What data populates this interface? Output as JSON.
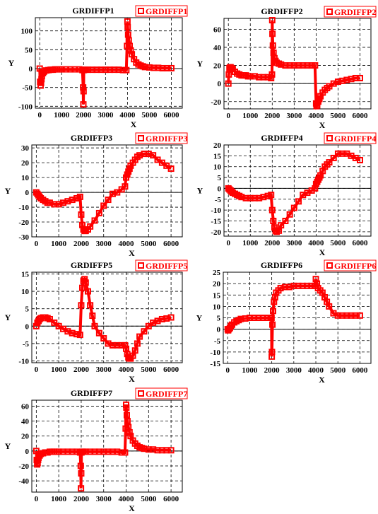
{
  "theme": {
    "series_color": "#ff0000",
    "axis_color": "#000000",
    "grid_color": "#000000",
    "background": "#ffffff"
  },
  "chart_data": [
    {
      "type": "scatter",
      "title": "GRDIFFP1",
      "xlabel": "X",
      "ylabel": "Y",
      "xlim": [
        -200,
        6500
      ],
      "ylim": [
        -105,
        135
      ],
      "xticks": [
        0,
        1000,
        2000,
        3000,
        4000,
        5000,
        6000
      ],
      "yticks": [
        -100,
        -50,
        0,
        50,
        100
      ],
      "grid": true,
      "legend_position": "top-right",
      "series": [
        {
          "name": "GRDIFFP1",
          "x": [
            0,
            20,
            40,
            60,
            80,
            100,
            150,
            200,
            300,
            400,
            500,
            600,
            700,
            800,
            900,
            1000,
            1200,
            1400,
            1600,
            1800,
            1950,
            1980,
            1990,
            2000,
            2010,
            2050,
            2100,
            2200,
            2400,
            2600,
            2800,
            3000,
            3200,
            3400,
            3600,
            3800,
            3950,
            3980,
            4000,
            4010,
            4030,
            4060,
            4100,
            4150,
            4200,
            4300,
            4400,
            4500,
            4600,
            4700,
            4800,
            5000,
            5200,
            5400,
            5600,
            5800,
            6000
          ],
          "y": [
            0,
            -35,
            -45,
            -38,
            -28,
            -20,
            -12,
            -8,
            -5,
            -4,
            -3,
            -3,
            -2,
            -2,
            -2,
            -2,
            -2,
            -2,
            -2,
            -2,
            -4,
            -50,
            -95,
            -60,
            -4,
            -3,
            -3,
            -3,
            -3,
            -3,
            -3,
            -3,
            -3,
            -3,
            -3,
            -4,
            -4,
            60,
            125,
            110,
            90,
            75,
            60,
            48,
            38,
            25,
            16,
            11,
            8,
            6,
            4,
            3,
            2,
            2,
            1,
            1,
            1
          ]
        }
      ]
    },
    {
      "type": "scatter",
      "title": "GRDIFFP2",
      "xlabel": "X",
      "ylabel": "Y",
      "xlim": [
        -200,
        6500
      ],
      "ylim": [
        -28,
        72
      ],
      "xticks": [
        0,
        1000,
        2000,
        3000,
        4000,
        5000,
        6000
      ],
      "yticks": [
        -20,
        0,
        20,
        40,
        60
      ],
      "grid": true,
      "legend_position": "top-right",
      "series": [
        {
          "name": "GRDIFFP2",
          "x": [
            0,
            20,
            50,
            80,
            100,
            150,
            200,
            300,
            400,
            500,
            600,
            700,
            800,
            900,
            1000,
            1200,
            1400,
            1600,
            1800,
            1950,
            1990,
            2000,
            2010,
            2030,
            2060,
            2100,
            2150,
            2200,
            2300,
            2400,
            2600,
            2800,
            3000,
            3200,
            3400,
            3600,
            3800,
            3950,
            4000,
            4020,
            4050,
            4100,
            4150,
            4200,
            4300,
            4400,
            4500,
            4600,
            4800,
            5000,
            5200,
            5400,
            5600,
            5800,
            6000
          ],
          "y": [
            0,
            10,
            17,
            18,
            18,
            17,
            16,
            13,
            11,
            10,
            9,
            9,
            9,
            8,
            8,
            8,
            7,
            7,
            7,
            6,
            10,
            70,
            55,
            42,
            34,
            28,
            25,
            23,
            22,
            21,
            20,
            20,
            20,
            20,
            20,
            20,
            20,
            20,
            -22,
            -25,
            -24,
            -20,
            -17,
            -14,
            -10,
            -7,
            -5,
            -3,
            0,
            2,
            3,
            4,
            5,
            6,
            6
          ]
        }
      ]
    },
    {
      "type": "scatter",
      "title": "GRDIFFP3",
      "xlabel": "X",
      "ylabel": "Y",
      "xlim": [
        -200,
        6500
      ],
      "ylim": [
        -30,
        32
      ],
      "xticks": [
        0,
        1000,
        2000,
        3000,
        4000,
        5000,
        6000
      ],
      "yticks": [
        -30,
        -20,
        -10,
        0,
        10,
        20,
        30
      ],
      "grid": true,
      "legend_position": "top-right",
      "series": [
        {
          "name": "GRDIFFP3",
          "x": [
            0,
            50,
            100,
            150,
            200,
            300,
            400,
            500,
            600,
            800,
            1000,
            1200,
            1400,
            1600,
            1800,
            1950,
            2000,
            2050,
            2100,
            2150,
            2200,
            2300,
            2400,
            2600,
            2800,
            3000,
            3200,
            3400,
            3600,
            3800,
            3950,
            4000,
            4050,
            4100,
            4150,
            4200,
            4300,
            4400,
            4500,
            4600,
            4800,
            5000,
            5200,
            5400,
            5600,
            5800,
            6000
          ],
          "y": [
            0,
            -1,
            -2,
            -3,
            -4,
            -5,
            -6,
            -7,
            -7,
            -8,
            -8,
            -7,
            -6,
            -5,
            -4,
            -3,
            -15,
            -22,
            -25,
            -26,
            -26,
            -25,
            -23,
            -19,
            -14,
            -9,
            -5,
            -1,
            0,
            2,
            4,
            10,
            12,
            14,
            16,
            18,
            20,
            22,
            24,
            25,
            26,
            26,
            25,
            22,
            20,
            18,
            16
          ]
        }
      ]
    },
    {
      "type": "scatter",
      "title": "GRDIFFP4",
      "xlabel": "X",
      "ylabel": "Y",
      "xlim": [
        -200,
        6500
      ],
      "ylim": [
        -22,
        20
      ],
      "xticks": [
        0,
        1000,
        2000,
        3000,
        4000,
        5000,
        6000
      ],
      "yticks": [
        -20,
        -15,
        -10,
        -5,
        0,
        5,
        10,
        15,
        20
      ],
      "grid": true,
      "legend_position": "top-right",
      "series": [
        {
          "name": "GRDIFFP4",
          "x": [
            0,
            50,
            100,
            150,
            200,
            300,
            400,
            500,
            600,
            800,
            1000,
            1200,
            1400,
            1600,
            1800,
            1950,
            2000,
            2050,
            2100,
            2150,
            2200,
            2300,
            2400,
            2600,
            2800,
            3000,
            3200,
            3400,
            3600,
            3800,
            3950,
            4000,
            4050,
            4100,
            4150,
            4200,
            4300,
            4400,
            4500,
            4600,
            4800,
            5000,
            5200,
            5400,
            5600,
            5800,
            6000
          ],
          "y": [
            0,
            -0.5,
            -1,
            -1.5,
            -2,
            -2.5,
            -3,
            -3.5,
            -4,
            -4.5,
            -4.5,
            -4.5,
            -4.5,
            -4,
            -3.5,
            -3,
            -10,
            -15,
            -18,
            -19.5,
            -20,
            -19.5,
            -17,
            -15,
            -12,
            -9,
            -6,
            -3,
            -2,
            -1,
            0,
            2,
            3,
            4,
            5,
            6,
            8,
            10,
            11,
            12,
            14,
            16,
            16,
            16,
            15,
            14,
            13
          ]
        }
      ]
    },
    {
      "type": "scatter",
      "title": "GRDIFFP5",
      "xlabel": "X",
      "ylabel": "Y",
      "xlim": [
        -200,
        6500
      ],
      "ylim": [
        -10.5,
        15.5
      ],
      "xticks": [
        0,
        1000,
        2000,
        3000,
        4000,
        5000,
        6000
      ],
      "yticks": [
        -10,
        -5,
        0,
        5,
        10,
        15
      ],
      "grid": true,
      "legend_position": "top-right",
      "series": [
        {
          "name": "GRDIFFP5",
          "x": [
            0,
            50,
            100,
            150,
            200,
            300,
            400,
            500,
            600,
            800,
            1000,
            1200,
            1400,
            1600,
            1800,
            1950,
            2000,
            2050,
            2100,
            2150,
            2200,
            2300,
            2400,
            2500,
            2600,
            2800,
            3000,
            3200,
            3400,
            3600,
            3800,
            3950,
            4000,
            4050,
            4100,
            4150,
            4200,
            4300,
            4400,
            4500,
            4600,
            4800,
            5000,
            5200,
            5400,
            5600,
            5800,
            6000
          ],
          "y": [
            0,
            1,
            1.5,
            2,
            2.3,
            2.5,
            2.5,
            2.3,
            2,
            1,
            0,
            -0.8,
            -1.5,
            -2,
            -2.3,
            -2.5,
            6,
            11,
            13,
            13.5,
            12.5,
            10,
            6,
            3,
            0,
            -2,
            -3.5,
            -5,
            -5.5,
            -5.5,
            -5.5,
            -5.5,
            -6.5,
            -8,
            -9,
            -9.3,
            -9.3,
            -8.5,
            -7,
            -5,
            -3,
            -1.5,
            0,
            1,
            1.5,
            2,
            2.2,
            2.5
          ]
        }
      ]
    },
    {
      "type": "scatter",
      "title": "GRDIFFP6",
      "xlabel": "X",
      "ylabel": "Y",
      "xlim": [
        -200,
        6500
      ],
      "ylim": [
        -15,
        25
      ],
      "xticks": [
        0,
        1000,
        2000,
        3000,
        4000,
        5000,
        6000
      ],
      "yticks": [
        -15,
        -10,
        -5,
        0,
        5,
        10,
        15,
        20,
        25
      ],
      "grid": true,
      "legend_position": "top-right",
      "series": [
        {
          "name": "GRDIFFP6",
          "x": [
            0,
            20,
            50,
            100,
            150,
            200,
            300,
            400,
            500,
            600,
            800,
            1000,
            1200,
            1400,
            1600,
            1800,
            1950,
            1990,
            2000,
            2010,
            2030,
            2060,
            2100,
            2150,
            2200,
            2300,
            2400,
            2600,
            2800,
            3000,
            3200,
            3400,
            3600,
            3800,
            3950,
            4000,
            4050,
            4100,
            4200,
            4300,
            4400,
            4500,
            4600,
            4800,
            5000,
            5200,
            5400,
            5600,
            5800,
            6000
          ],
          "y": [
            0,
            -0.5,
            0,
            0.5,
            1.5,
            2,
            3,
            3.5,
            4,
            4.5,
            4.7,
            5,
            5,
            5,
            5,
            5,
            5,
            5,
            -12,
            -10,
            2,
            8,
            12,
            14,
            16,
            17,
            18,
            18.5,
            18.5,
            19,
            19,
            19,
            19,
            19,
            19,
            22,
            20,
            18,
            17,
            16,
            14,
            12,
            10,
            7,
            6,
            6,
            6,
            6,
            6,
            6
          ]
        }
      ]
    },
    {
      "type": "scatter",
      "title": "GRDIFFP7",
      "xlabel": "X",
      "ylabel": "Y",
      "xlim": [
        -200,
        6500
      ],
      "ylim": [
        -55,
        68
      ],
      "xticks": [
        0,
        1000,
        2000,
        3000,
        4000,
        5000,
        6000
      ],
      "yticks": [
        -40,
        -20,
        0,
        20,
        40,
        60
      ],
      "grid": true,
      "legend_position": "top-right",
      "series": [
        {
          "name": "GRDIFFP7",
          "x": [
            0,
            20,
            40,
            60,
            80,
            100,
            150,
            200,
            300,
            400,
            500,
            600,
            700,
            800,
            900,
            1000,
            1200,
            1400,
            1600,
            1800,
            1950,
            1980,
            1990,
            2000,
            2010,
            2050,
            2100,
            2200,
            2400,
            2600,
            2800,
            3000,
            3200,
            3400,
            3600,
            3800,
            3950,
            3980,
            4000,
            4010,
            4030,
            4060,
            4100,
            4150,
            4200,
            4300,
            4400,
            4500,
            4600,
            4700,
            4800,
            5000,
            5200,
            5400,
            5600,
            5800,
            6000
          ],
          "y": [
            0,
            -12,
            -18,
            -16,
            -12,
            -9,
            -6,
            -4,
            -3,
            -2,
            -2,
            -1,
            -1,
            -1,
            -1,
            -1,
            -1,
            -1,
            -1,
            -1,
            -2,
            -20,
            -50,
            -30,
            -2,
            -1,
            -1,
            -1,
            -1,
            -1,
            -1,
            -1,
            -1,
            -1,
            -1,
            -2,
            -2,
            30,
            62,
            58,
            48,
            40,
            32,
            25,
            20,
            14,
            10,
            7,
            5,
            4,
            3,
            2,
            2,
            1,
            1,
            1,
            1
          ]
        }
      ]
    }
  ]
}
